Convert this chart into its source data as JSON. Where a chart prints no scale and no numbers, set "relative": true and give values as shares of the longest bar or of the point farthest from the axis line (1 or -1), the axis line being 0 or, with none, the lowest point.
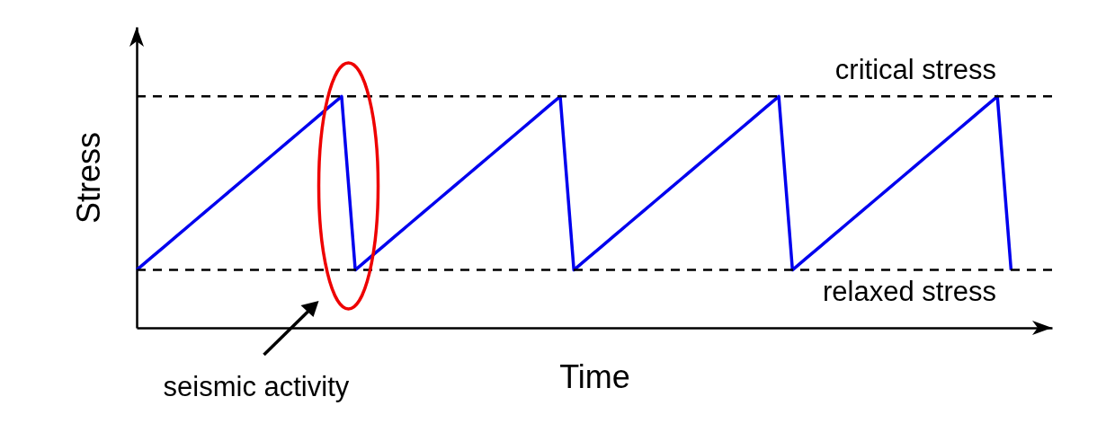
{
  "chart_data": {
    "type": "line",
    "relative": true,
    "xlabel": "Time",
    "ylabel": "Stress",
    "categories": [
      null,
      null,
      null,
      null,
      null,
      null,
      null,
      null,
      null,
      null,
      null,
      null,
      null,
      null,
      null,
      null,
      null,
      null,
      null,
      null,
      null,
      null,
      null,
      null,
      null,
      null,
      null,
      null,
      null,
      null,
      null,
      null,
      null,
      null,
      null,
      null,
      null,
      null,
      null,
      null,
      null,
      null,
      null,
      null,
      null,
      null,
      null,
      null,
      null,
      null,
      null,
      null,
      null,
      null,
      null,
      null,
      null,
      null,
      null,
      null,
      null,
      null,
      null,
      null,
      null,
      null,
      null,
      null
    ],
    "series": [
      {
        "color": "#0000ee",
        "values": [
          0.25,
          0.3,
          0.35,
          0.4,
          0.45,
          0.5,
          0.55,
          0.6,
          0.65,
          0.7,
          0.75,
          0.8,
          0.85,
          0.9,
          0.95,
          1,
          0.25,
          0.3,
          0.35,
          0.4,
          0.45,
          0.5,
          0.55,
          0.6,
          0.65,
          0.7,
          0.75,
          0.8,
          0.85,
          0.9,
          0.95,
          1,
          0.25,
          0.3,
          0.35,
          0.4,
          0.45,
          0.5,
          0.55,
          0.6,
          0.65,
          0.7,
          0.75,
          0.8,
          0.85,
          0.9,
          0.95,
          1,
          0.25,
          0.3,
          0.35,
          0.4,
          0.45,
          0.5,
          0.55,
          0.6,
          0.65,
          0.7,
          0.75,
          0.8,
          0.85,
          0.9,
          0.95,
          1,
          0.25,
          null,
          null,
          null
        ]
      }
    ],
    "ref_lines": [
      {
        "axis": "y",
        "value": 1,
        "label": "critical stress",
        "line_style": "dashed"
      },
      {
        "axis": "y",
        "value": 0.25,
        "label": "relaxed stress",
        "line_style": "dashed"
      }
    ],
    "annotations": [
      "seismic activity"
    ],
    "grid": false,
    "marker": "none",
    "line_style": "solid"
  }
}
